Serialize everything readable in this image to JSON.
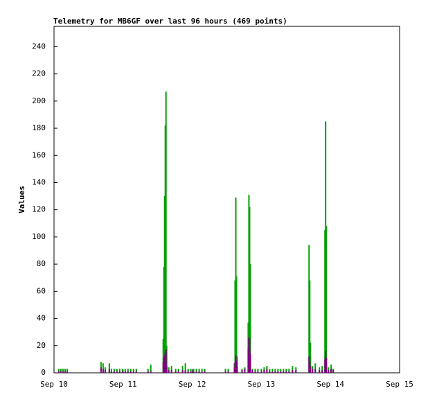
{
  "chart_data": {
    "type": "impulse",
    "title": "Telemetry for MB6GF over last 96 hours (469 points)",
    "y_label": "Values",
    "xlim": [
      0,
      5
    ],
    "xticks": [
      {
        "value": 0,
        "label": "Sep 10"
      },
      {
        "value": 1,
        "label": "Sep 11"
      },
      {
        "value": 2,
        "label": "Sep 12"
      },
      {
        "value": 3,
        "label": "Sep 13"
      },
      {
        "value": 4,
        "label": "Sep 14"
      },
      {
        "value": 5,
        "label": "Sep 15"
      }
    ],
    "ylim": [
      0,
      255
    ],
    "yticks": [
      0,
      20,
      40,
      60,
      80,
      100,
      120,
      140,
      160,
      180,
      200,
      220,
      240
    ],
    "x": [
      0.07,
      0.1,
      0.13,
      0.16,
      0.19,
      0.68,
      0.71,
      0.74,
      0.8,
      0.83,
      0.87,
      0.91,
      0.95,
      0.99,
      1.03,
      1.07,
      1.11,
      1.15,
      1.19,
      1.36,
      1.4,
      1.58,
      1.59,
      1.6,
      1.61,
      1.62,
      1.63,
      1.66,
      1.7,
      1.76,
      1.8,
      1.86,
      1.9,
      1.94,
      1.98,
      2.02,
      2.06,
      2.1,
      2.14,
      2.18,
      2.48,
      2.52,
      2.61,
      2.62,
      2.63,
      2.64,
      2.65,
      2.72,
      2.76,
      2.81,
      2.82,
      2.83,
      2.84,
      2.87,
      2.91,
      2.95,
      3.0,
      3.04,
      3.08,
      3.12,
      3.16,
      3.2,
      3.24,
      3.28,
      3.32,
      3.36,
      3.4,
      3.45,
      3.5,
      3.69,
      3.7,
      3.71,
      3.74,
      3.78,
      3.84,
      3.88,
      3.92,
      3.93,
      3.94,
      3.97,
      4.01,
      4.04
    ],
    "series": [
      {
        "color": "#00a000",
        "values": [
          3,
          3,
          3,
          3,
          3,
          8,
          7,
          4,
          7,
          3,
          3,
          3,
          3,
          3,
          3,
          3,
          3,
          3,
          3,
          3,
          6,
          25,
          78,
          130,
          182,
          207,
          20,
          4,
          5,
          3,
          3,
          5,
          7,
          3,
          3,
          3,
          3,
          3,
          3,
          3,
          3,
          3,
          7,
          68,
          129,
          71,
          12,
          3,
          4,
          37,
          131,
          122,
          80,
          3,
          3,
          3,
          3,
          4,
          5,
          3,
          3,
          3,
          3,
          3,
          3,
          3,
          3,
          5,
          4,
          94,
          68,
          22,
          5,
          7,
          4,
          5,
          105,
          185,
          108,
          4,
          6,
          3
        ]
      },
      {
        "color": "#800080",
        "values": [
          1,
          1,
          1,
          1,
          1,
          4,
          3,
          2,
          3,
          1,
          1,
          1,
          1,
          1,
          1,
          1,
          1,
          1,
          1,
          1,
          1,
          8,
          11,
          13,
          15,
          17,
          5,
          2,
          2,
          1,
          1,
          2,
          2,
          1,
          1,
          1,
          1,
          1,
          1,
          1,
          1,
          1,
          4,
          8,
          13,
          9,
          4,
          2,
          3,
          18,
          26,
          25,
          14,
          2,
          1,
          1,
          1,
          2,
          3,
          1,
          1,
          1,
          1,
          1,
          1,
          1,
          1,
          2,
          2,
          12,
          8,
          5,
          3,
          3,
          2,
          2,
          10,
          16,
          11,
          2,
          3,
          2
        ]
      }
    ]
  }
}
